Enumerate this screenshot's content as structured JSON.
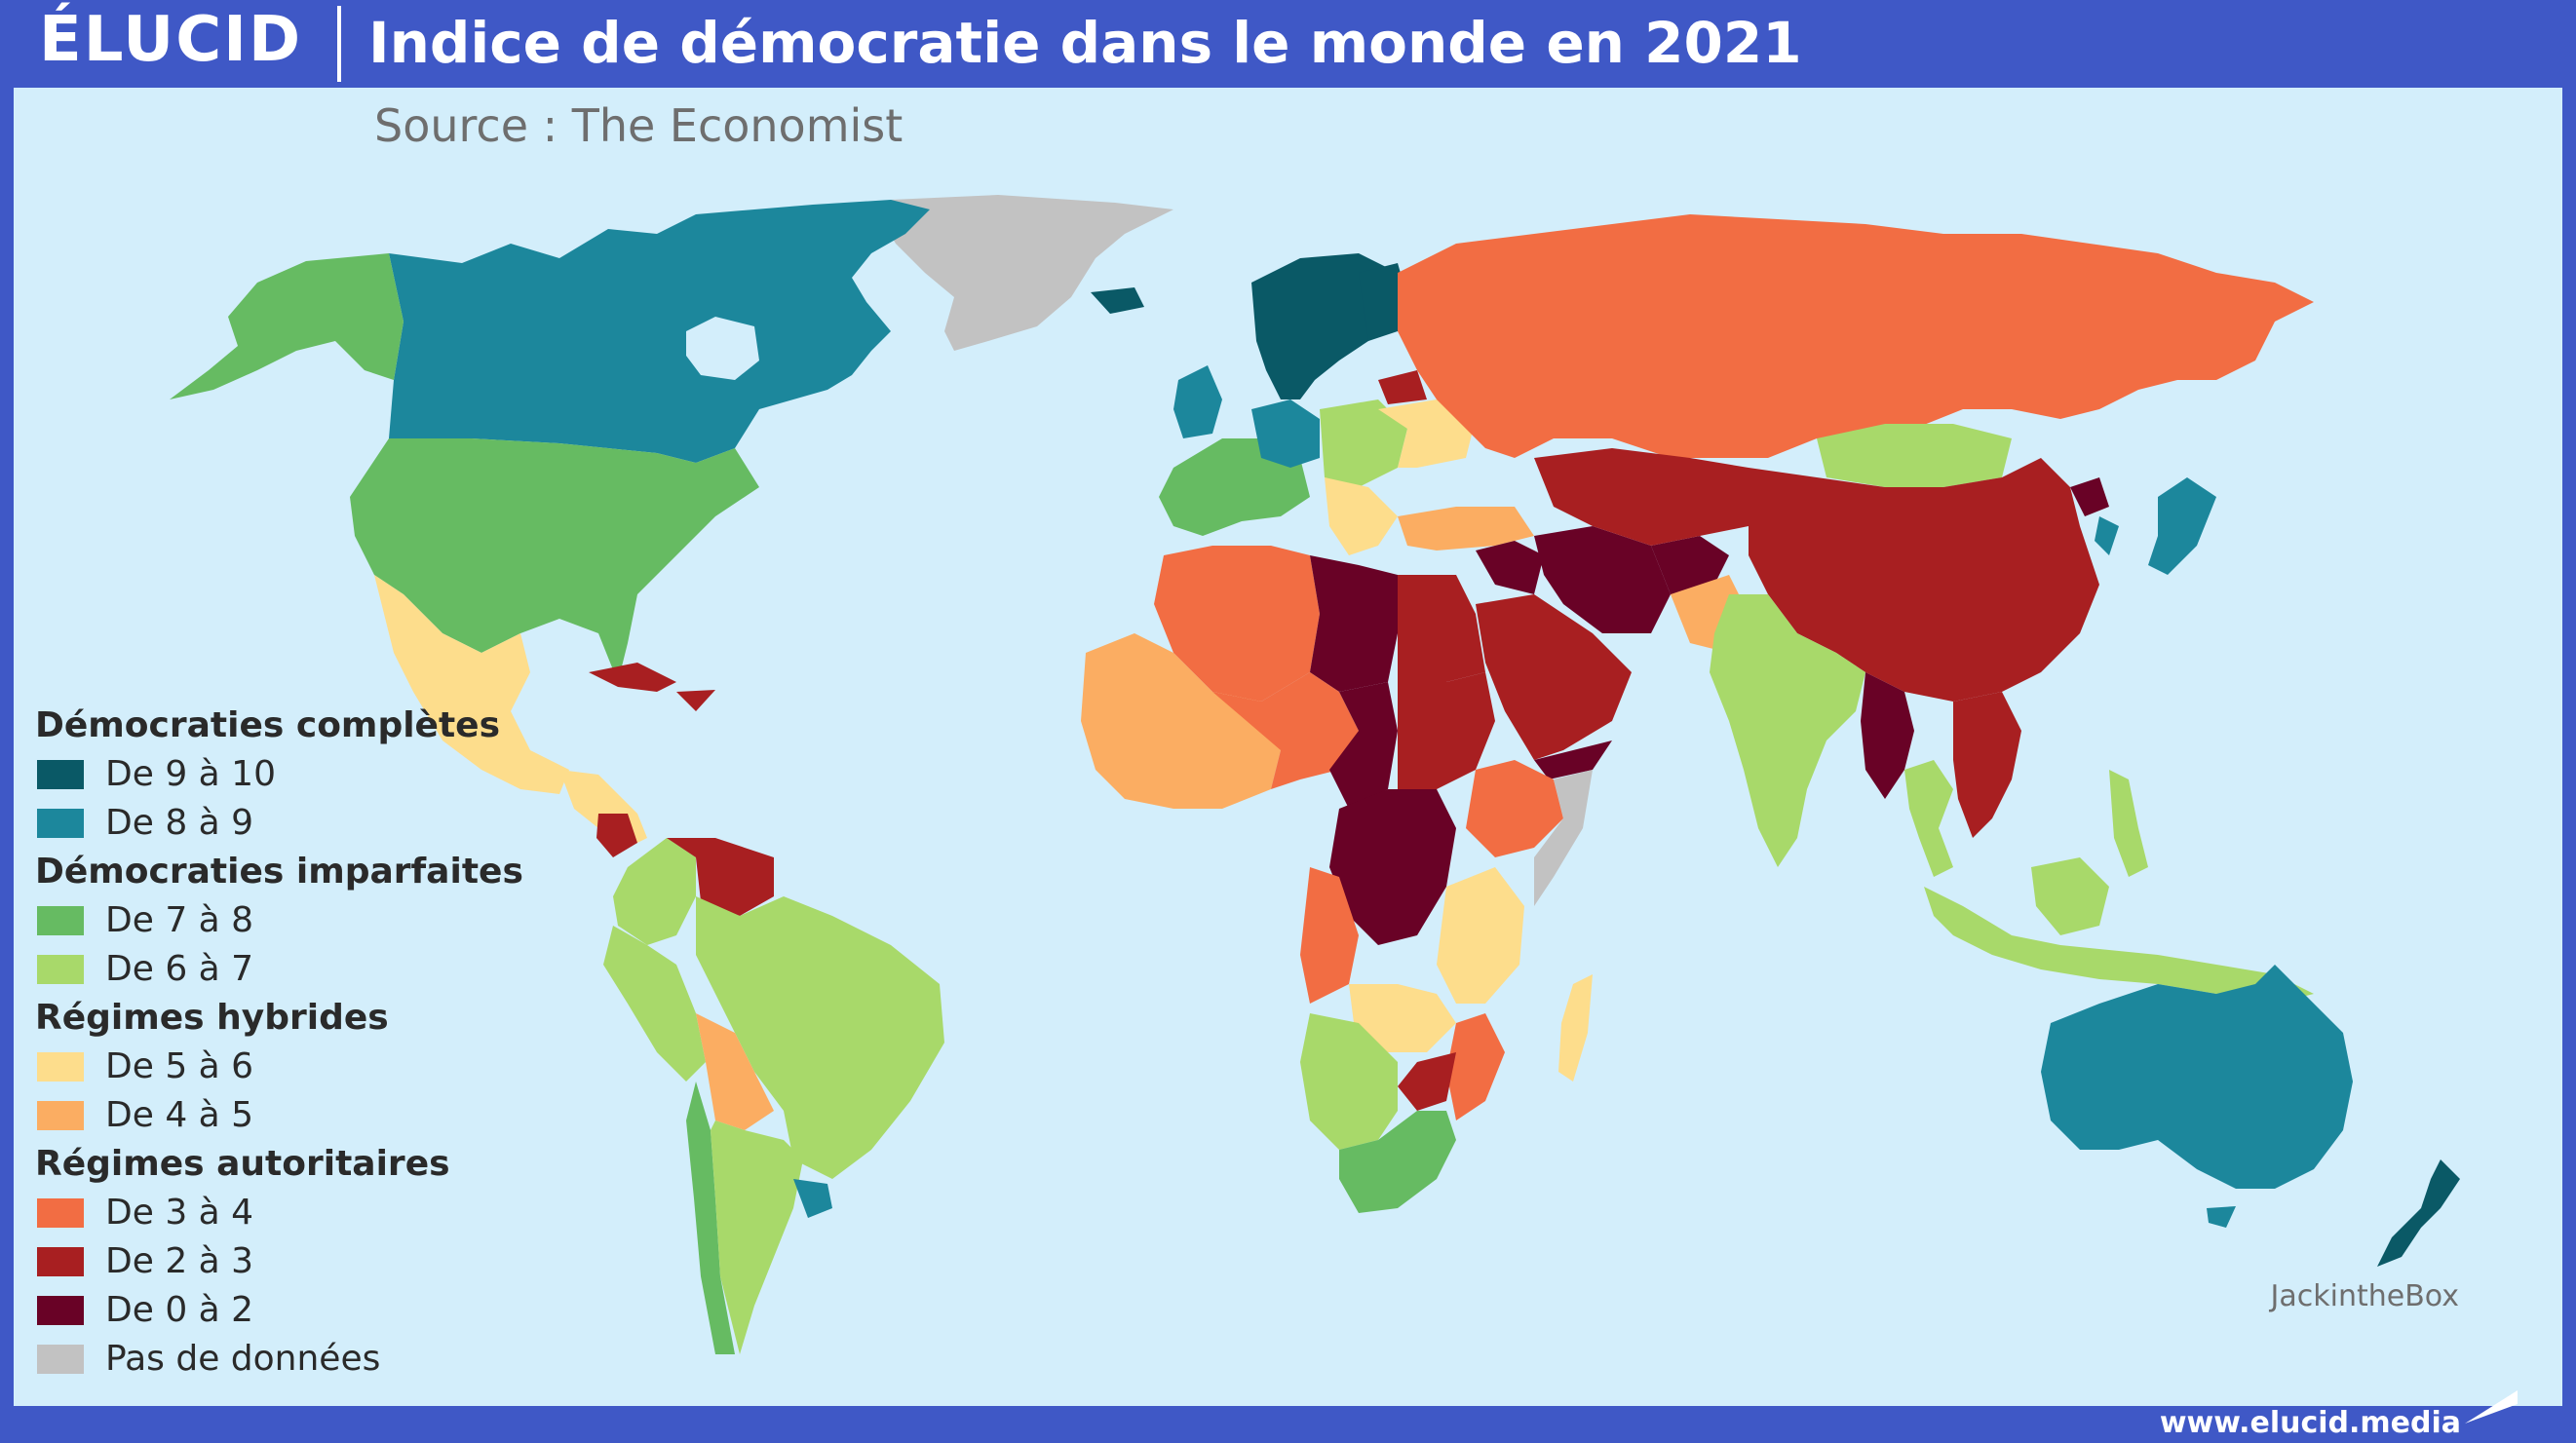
{
  "header": {
    "logo": "ÉLUCID",
    "title": "Indice de démocratie dans le monde en 2021"
  },
  "source": "Source : The Economist",
  "colors": {
    "background_blue": "#3f58c6",
    "ocean": "#d3eefb",
    "c9_10": "#0a5966",
    "c8_9": "#1c879c",
    "c7_8": "#66bb62",
    "c6_7": "#a8d96a",
    "c5_6": "#fddd8c",
    "c4_5": "#fbad62",
    "c3_4": "#f26d43",
    "c2_3": "#a81f21",
    "c0_2": "#690226",
    "nodata": "#c2c2c2"
  },
  "legend": {
    "group_full": "Démocraties complètes",
    "item_9_10": "De 9 à 10",
    "item_8_9": "De 8 à 9",
    "group_flawed": "Démocraties imparfaites",
    "item_7_8": "De 7 à 8",
    "item_6_7": "De 6 à 7",
    "group_hybrid": "Régimes hybrides",
    "item_5_6": "De 5 à 6",
    "item_4_5": "De 4 à 5",
    "group_auth": "Régimes autoritaires",
    "item_3_4": "De 3 à 4",
    "item_2_3": "De 2 à 3",
    "item_0_2": "De 0 à 2",
    "item_nodata": "Pas de données"
  },
  "credit": "JackintheBox",
  "url": "www.elucid.media"
}
